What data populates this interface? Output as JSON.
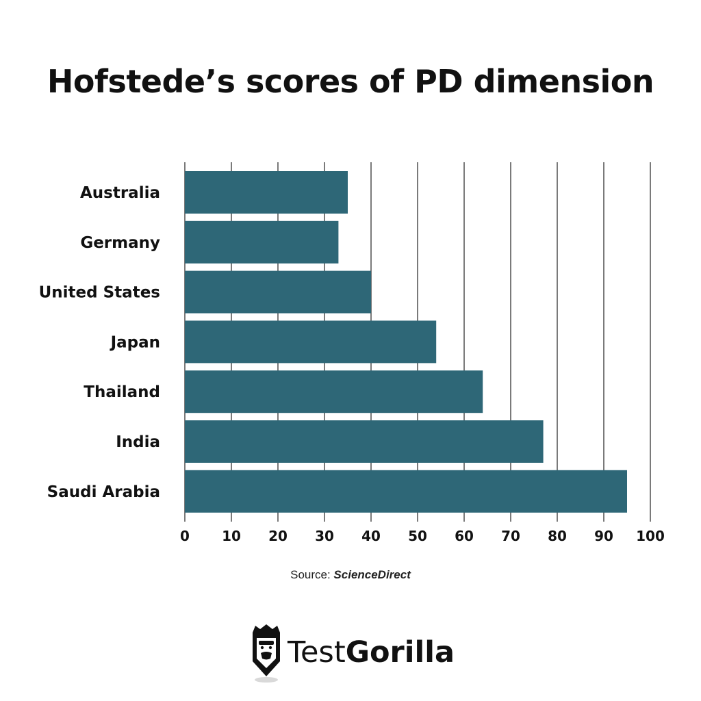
{
  "chart_data": {
    "type": "bar",
    "orientation": "horizontal",
    "title": "Hofstede’s scores of PD dimension",
    "categories": [
      "Australia",
      "Germany",
      "United States",
      "Japan",
      "Thailand",
      "India",
      "Saudi Arabia"
    ],
    "values": [
      35,
      33,
      40,
      54,
      64,
      77,
      95
    ],
    "xlim": [
      0,
      100
    ],
    "xticks": [
      0,
      10,
      20,
      30,
      40,
      50,
      60,
      70,
      80,
      90,
      100
    ],
    "xlabel": "",
    "ylabel": "",
    "grid": "vertical",
    "bar_color": "#2e6777"
  },
  "source": {
    "prefix": "Source: ",
    "name": "ScienceDirect"
  },
  "logo": {
    "light_text": "Test",
    "bold_text": "Gorilla",
    "icon": "gorilla-pencil-icon"
  }
}
